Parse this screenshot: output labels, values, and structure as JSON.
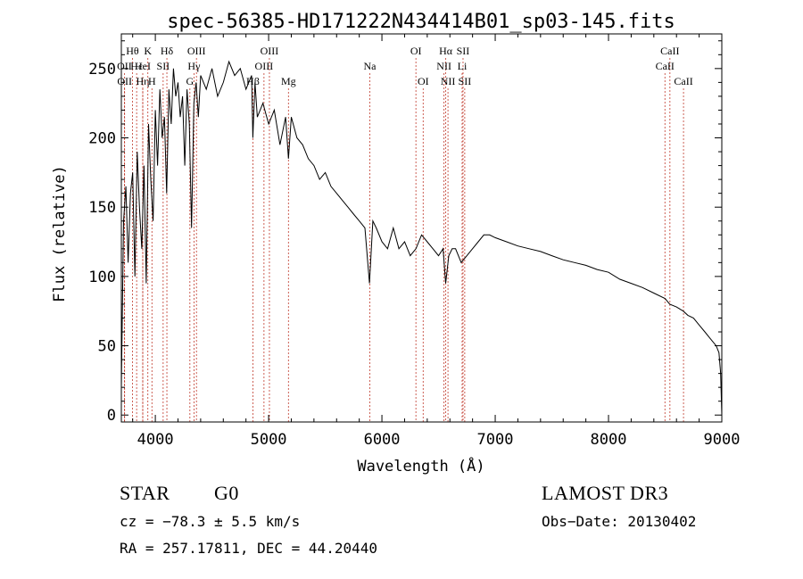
{
  "chart_data": {
    "type": "line",
    "title": "spec-56385-HD171222N434414B01_sp03-145.fits",
    "xlabel": "Wavelength (Å)",
    "ylabel": "Flux (relative)",
    "xlim": [
      3700,
      9000
    ],
    "ylim": [
      -5,
      275
    ],
    "xticks": [
      4000,
      5000,
      6000,
      7000,
      8000,
      9000
    ],
    "xtick_labels": [
      "4000",
      "5000",
      "6000",
      "7000",
      "8000",
      "9000"
    ],
    "yticks": [
      0,
      50,
      100,
      150,
      200,
      250
    ],
    "ytick_labels": [
      "0",
      "50",
      "100",
      "150",
      "200",
      "250"
    ],
    "series": [
      {
        "name": "flux",
        "x": [
          3700,
          3720,
          3740,
          3760,
          3780,
          3800,
          3820,
          3840,
          3860,
          3880,
          3900,
          3920,
          3940,
          3960,
          3980,
          4000,
          4020,
          4040,
          4060,
          4080,
          4100,
          4120,
          4140,
          4160,
          4180,
          4200,
          4220,
          4240,
          4260,
          4280,
          4300,
          4320,
          4340,
          4360,
          4380,
          4400,
          4450,
          4500,
          4550,
          4600,
          4650,
          4700,
          4750,
          4800,
          4850,
          4861,
          4880,
          4900,
          4950,
          5000,
          5050,
          5100,
          5150,
          5175,
          5200,
          5250,
          5300,
          5350,
          5400,
          5450,
          5500,
          5550,
          5600,
          5650,
          5700,
          5750,
          5800,
          5850,
          5890,
          5920,
          5950,
          6000,
          6050,
          6100,
          6150,
          6200,
          6250,
          6300,
          6350,
          6400,
          6450,
          6500,
          6540,
          6563,
          6590,
          6620,
          6650,
          6700,
          6750,
          6800,
          6850,
          6900,
          6950,
          7000,
          7100,
          7200,
          7300,
          7400,
          7500,
          7600,
          7700,
          7800,
          7900,
          8000,
          8100,
          8200,
          8300,
          8400,
          8500,
          8540,
          8600,
          8660,
          8700,
          8750,
          8800,
          8850,
          8900,
          8950,
          8975,
          8990,
          9000
        ],
        "y": [
          20,
          140,
          165,
          110,
          160,
          175,
          100,
          190,
          150,
          120,
          180,
          95,
          210,
          170,
          140,
          220,
          180,
          235,
          200,
          215,
          160,
          235,
          210,
          250,
          230,
          240,
          215,
          230,
          180,
          235,
          210,
          135,
          225,
          240,
          215,
          245,
          235,
          250,
          230,
          240,
          255,
          245,
          250,
          235,
          245,
          200,
          240,
          215,
          225,
          210,
          220,
          195,
          215,
          185,
          215,
          200,
          195,
          185,
          180,
          170,
          175,
          165,
          160,
          155,
          150,
          145,
          140,
          135,
          95,
          140,
          135,
          125,
          120,
          135,
          120,
          125,
          115,
          120,
          130,
          125,
          120,
          115,
          120,
          95,
          115,
          120,
          120,
          110,
          115,
          120,
          125,
          130,
          130,
          128,
          125,
          122,
          120,
          118,
          115,
          112,
          110,
          108,
          105,
          103,
          98,
          95,
          92,
          88,
          84,
          80,
          78,
          75,
          72,
          70,
          65,
          60,
          55,
          50,
          45,
          30,
          0
        ]
      }
    ],
    "line_markers": [
      {
        "name": "Hθ",
        "wavelength": 3798,
        "row": 1
      },
      {
        "name": "OII",
        "wavelength": 3727,
        "row": 2
      },
      {
        "name": "OII",
        "wavelength": 3729,
        "row": 3
      },
      {
        "name": "Hε",
        "wavelength": 3835,
        "row": 2
      },
      {
        "name": "HeI",
        "wavelength": 3889,
        "row": 2
      },
      {
        "name": "Hη",
        "wavelength": 3889,
        "row": 3
      },
      {
        "name": "K",
        "wavelength": 3934,
        "row": 1
      },
      {
        "name": "H",
        "wavelength": 3970,
        "row": 3
      },
      {
        "name": "SII",
        "wavelength": 4069,
        "row": 2
      },
      {
        "name": "Hδ",
        "wavelength": 4102,
        "row": 1
      },
      {
        "name": "OIII",
        "wavelength": 4363,
        "row": 1
      },
      {
        "name": "Hγ",
        "wavelength": 4341,
        "row": 2
      },
      {
        "name": "G",
        "wavelength": 4305,
        "row": 3
      },
      {
        "name": "Hβ",
        "wavelength": 4861,
        "row": 3
      },
      {
        "name": "OIII",
        "wavelength": 5007,
        "row": 1
      },
      {
        "name": "OIII",
        "wavelength": 4959,
        "row": 2
      },
      {
        "name": "Mg",
        "wavelength": 5175,
        "row": 3
      },
      {
        "name": "Na",
        "wavelength": 5893,
        "row": 2
      },
      {
        "name": "OI",
        "wavelength": 6300,
        "row": 1
      },
      {
        "name": "OI",
        "wavelength": 6364,
        "row": 3
      },
      {
        "name": "Hα",
        "wavelength": 6563,
        "row": 1
      },
      {
        "name": "NII",
        "wavelength": 6548,
        "row": 2
      },
      {
        "name": "NII",
        "wavelength": 6583,
        "row": 3
      },
      {
        "name": "SII",
        "wavelength": 6716,
        "row": 1
      },
      {
        "name": "Li",
        "wavelength": 6708,
        "row": 2
      },
      {
        "name": "SII",
        "wavelength": 6731,
        "row": 3
      },
      {
        "name": "CaII",
        "wavelength": 8542,
        "row": 1
      },
      {
        "name": "CaII",
        "wavelength": 8498,
        "row": 2
      },
      {
        "name": "CaII",
        "wavelength": 8662,
        "row": 3
      }
    ]
  },
  "info": {
    "class": "STAR",
    "subclass": "G0",
    "survey": "LAMOST DR3",
    "redshift": "cz = −78.3 ± 5.5 km/s",
    "obs_date": "Obs−Date: 20130402",
    "coords": "RA = 257.17811, DEC =  44.20440"
  }
}
